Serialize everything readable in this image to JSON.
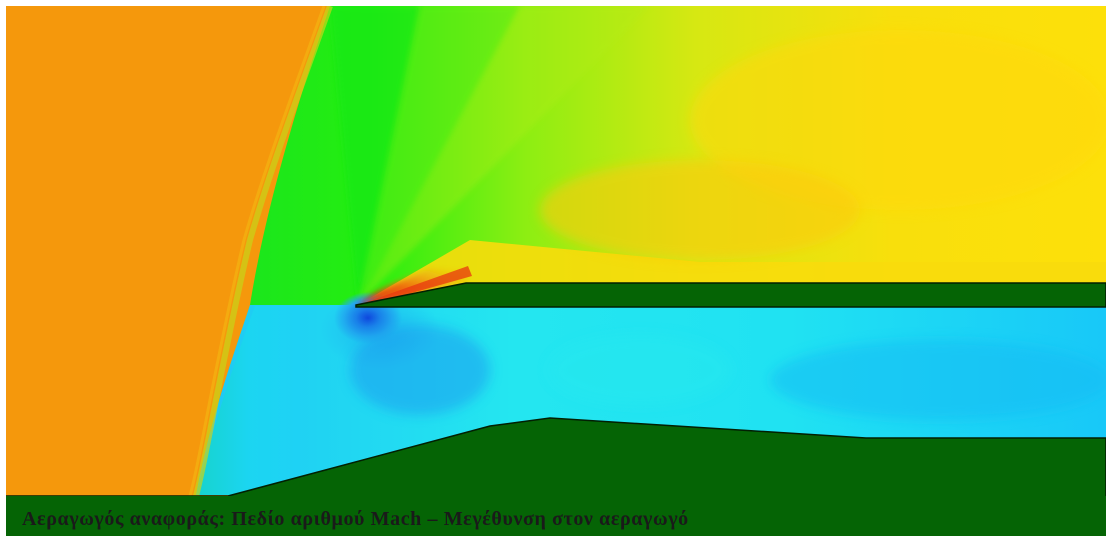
{
  "figure": {
    "caption": "Αεραγωγός αναφοράς: Πεδίο αριθμού Mach – Μεγέθυνση στον αεραγωγό"
  },
  "colors": {
    "freestream": "#f5980c",
    "post_shock_upper": "#fccb0c",
    "expansion_green": "#22ee16",
    "inlet_flow": "#20d8f4",
    "stagnation_blue": "#1258e8",
    "compression_red": "#e02408",
    "wall": "#056405",
    "frame": "#ffffff"
  }
}
